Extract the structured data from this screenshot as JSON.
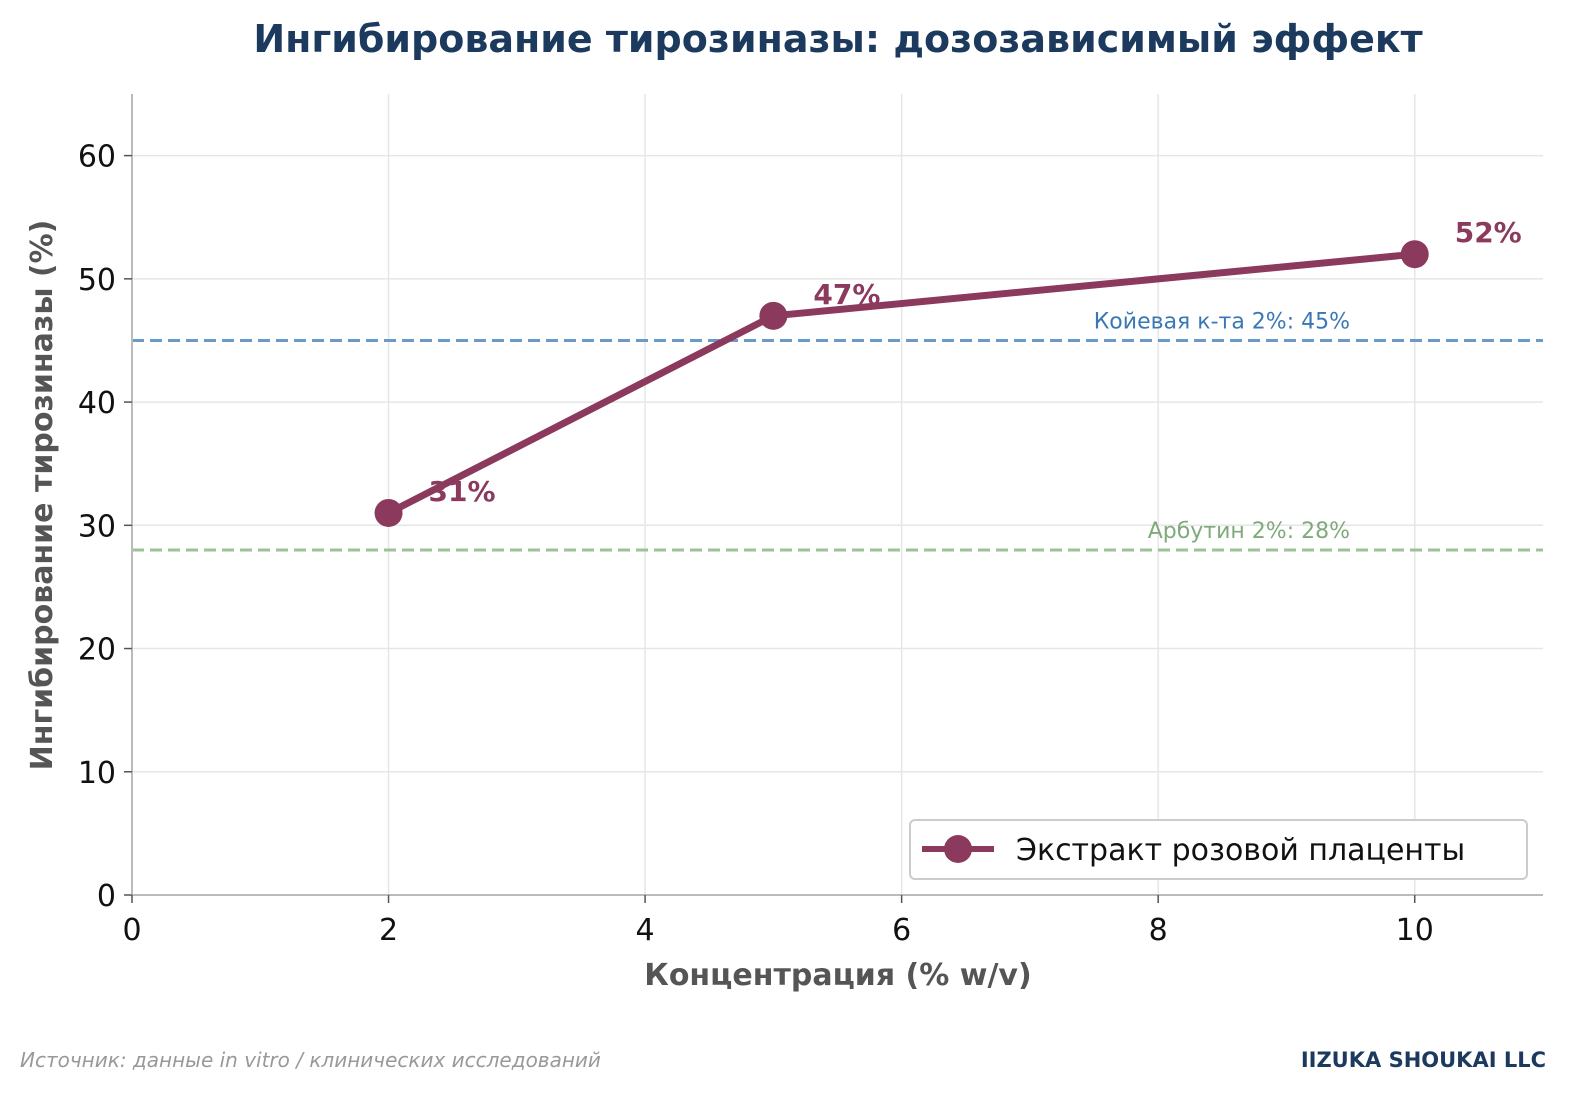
{
  "chart_data": {
    "type": "line",
    "title": "Ингибирование тирозиназы: дозозависимый эффект",
    "xlabel": "Концентрация (% w/v)",
    "ylabel": "Ингибирование тирозиназы (%)",
    "xlim": [
      0,
      11
    ],
    "ylim": [
      0,
      65
    ],
    "xticks": [
      0,
      2,
      4,
      6,
      8,
      10
    ],
    "yticks": [
      0,
      10,
      20,
      30,
      40,
      50,
      60
    ],
    "grid": true,
    "legend_position": "bottom-right",
    "series": [
      {
        "name": "Экстракт розовой плаценты",
        "color": "#8b3a5e",
        "x": [
          2,
          5,
          10
        ],
        "y": [
          31,
          47,
          52
        ],
        "data_labels": [
          "31%",
          "47%",
          "52%"
        ]
      }
    ],
    "reference_lines": [
      {
        "label": "Койевая к-та 2%: 45%",
        "y": 45,
        "color": "#6a9ac8",
        "text_color": "#3a78b5"
      },
      {
        "label": "Арбутин 2%: 28%",
        "y": 28,
        "color": "#9fc09b",
        "text_color": "#7faa7b"
      }
    ]
  },
  "footer": {
    "source": "Источник: данные in vitro / клинических исследований",
    "company": "IIZUKA SHOUKAI LLC"
  },
  "colors": {
    "title": "#1b3a5e",
    "axis_label": "#555555",
    "source": "#999999",
    "company": "#1b3a5e"
  }
}
